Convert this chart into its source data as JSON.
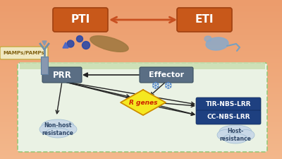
{
  "bg_color": "#f0a878",
  "cell_bg": "#eaf2e4",
  "cell_border": "#98c878",
  "membrane_color": "#c8ddb0",
  "box_orange": "#c8581a",
  "box_orange_edge": "#a04010",
  "box_text_color": "#ffffff",
  "prr_box_color": "#5a6e84",
  "effector_box_color": "#5a6e84",
  "tir_box_color": "#1e4080",
  "cc_box_color": "#1e4080",
  "r_genes_fill": "#f5e820",
  "r_genes_edge": "#cc8800",
  "r_genes_text": "#cc2200",
  "cloud_fill": "#c8d8e8",
  "cloud_edge": "#98b8d0",
  "arrow_orange": "#c85020",
  "arrow_dark": "#222222",
  "mamps_bg": "#f0e8c0",
  "mamps_border": "#c8a840",
  "mamps_text": "#806010",
  "snow_color": "#5588cc",
  "blue_dot": "#2244aa",
  "blue_light": "#88aacc",
  "spore_color": "#a07840",
  "receptor_color": "#8898a8",
  "title_pti": "PTI",
  "title_eti": "ETI",
  "label_prr": "PRR",
  "label_effector": "Effector",
  "label_tir": "TIR-NBS-LRR",
  "label_cc": "CC-NBS-LRR",
  "label_r": "R genes",
  "label_nonhost": "Non-host\nresistance",
  "label_host": "Host-\nresistance",
  "label_mamps": "MAMPs/PAMPs"
}
